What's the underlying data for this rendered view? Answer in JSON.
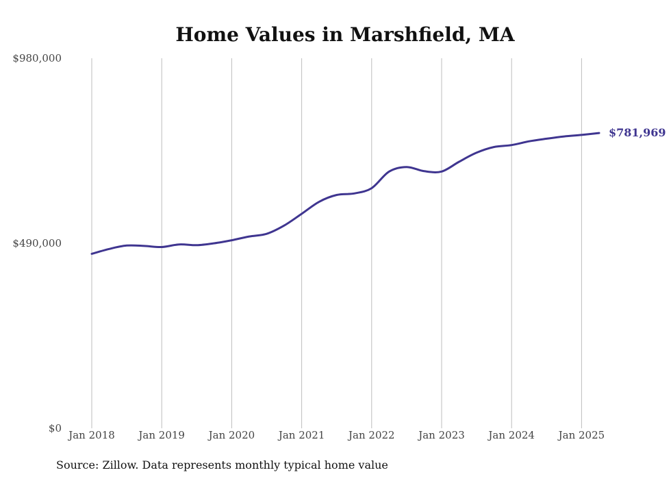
{
  "chart_data": {
    "type": "line",
    "title": "Home Values in Marshfield, MA",
    "xlabel": "",
    "ylabel": "",
    "ylim": [
      0,
      980000
    ],
    "xlim": [
      "2018-01",
      "2025-04"
    ],
    "y_ticks": [
      "$0",
      "$490,000",
      "$980,000"
    ],
    "y_tick_values": [
      0,
      490000,
      980000
    ],
    "x_ticks": [
      "Jan 2018",
      "Jan 2019",
      "Jan 2020",
      "Jan 2021",
      "Jan 2022",
      "Jan 2023",
      "Jan 2024",
      "Jan 2025"
    ],
    "x_tick_values": [
      "2018-01",
      "2019-01",
      "2020-01",
      "2021-01",
      "2022-01",
      "2023-01",
      "2024-01",
      "2025-01"
    ],
    "grid": "vertical",
    "line_color": "#3f3590",
    "series": [
      {
        "x": [
          "2018-01",
          "2018-04",
          "2018-07",
          "2018-10",
          "2019-01",
          "2019-04",
          "2019-07",
          "2019-10",
          "2020-01",
          "2020-04",
          "2020-07",
          "2020-10",
          "2021-01",
          "2021-04",
          "2021-07",
          "2021-10",
          "2022-01",
          "2022-04",
          "2022-07",
          "2022-10",
          "2023-01",
          "2023-04",
          "2023-07",
          "2023-10",
          "2024-01",
          "2024-04",
          "2024-07",
          "2024-10",
          "2025-01",
          "2025-04"
        ],
        "values": [
          462000,
          475000,
          484000,
          483000,
          480000,
          487000,
          485000,
          490000,
          498000,
          508000,
          515000,
          537000,
          568000,
          600000,
          618000,
          622000,
          636000,
          680000,
          692000,
          681000,
          680000,
          706000,
          730000,
          745000,
          750000,
          760000,
          767000,
          773000,
          777000,
          781969
        ]
      }
    ],
    "end_label": "$781,969",
    "source": "Source: Zillow. Data represents monthly typical home value"
  }
}
